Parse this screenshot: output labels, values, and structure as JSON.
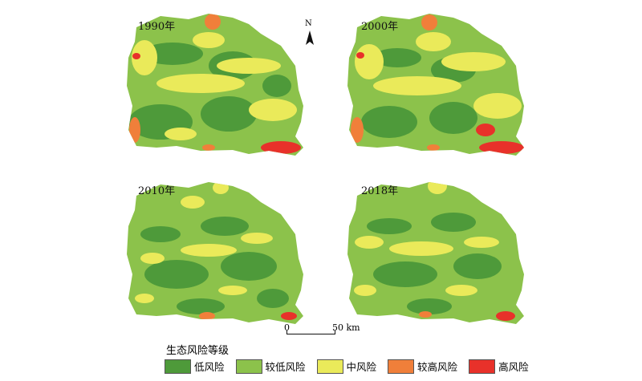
{
  "maps": [
    {
      "id": "p1990",
      "year": "1990年"
    },
    {
      "id": "p2000",
      "year": "2000年"
    },
    {
      "id": "p2010",
      "year": "2010年"
    },
    {
      "id": "p2018",
      "year": "2018年"
    }
  ],
  "north": {
    "letter": "N"
  },
  "scale": {
    "start": "0",
    "end": "50 km"
  },
  "legend": {
    "title": "生态风险等级",
    "items": [
      {
        "label": "低风险",
        "color": "#4e9a3a"
      },
      {
        "label": "较低风险",
        "color": "#8cc24b"
      },
      {
        "label": "中风险",
        "color": "#eaea5a"
      },
      {
        "label": "较高风险",
        "color": "#f07f3a"
      },
      {
        "label": "高风险",
        "color": "#e8312a"
      }
    ]
  }
}
